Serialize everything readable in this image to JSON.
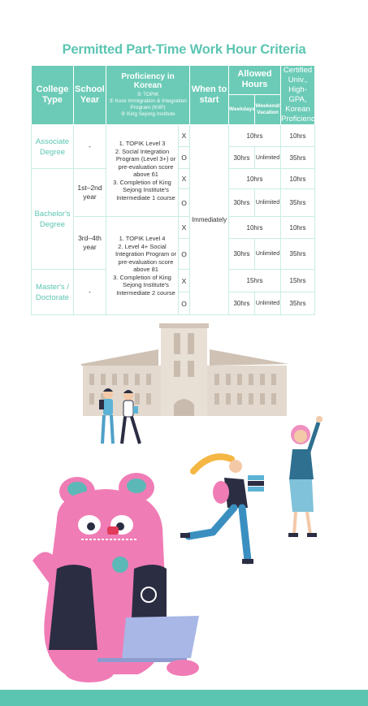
{
  "title": "Permitted Part-Time Work Hour Criteria",
  "headers": {
    "college_type": "College Type",
    "school_year": "School Year",
    "proficiency": "Proficiency in Korean",
    "proficiency_list": [
      "① TOPIK",
      "② Kore Immigration & Integration Program (KIIP)",
      "③ King Sejong Institute"
    ],
    "when_to_start": "When to start",
    "allowed_hours": "Allowed Hours",
    "weekdays": "Weekdays",
    "weekend": "Weekend/ Vacation",
    "certified": "Certified Univ., High-GPA, Korean Proficiency"
  },
  "when_value": "Immediately",
  "rows": [
    {
      "college": "Associate Degree",
      "year": "-",
      "xo": "X",
      "weekday": "10hrs",
      "weekend": "",
      "certified": "10hrs"
    },
    {
      "college": "",
      "year": "",
      "xo": "O",
      "weekday": "30hrs",
      "weekend": "Unlimited",
      "certified": "35hrs"
    },
    {
      "college": "Bachelor's Degree",
      "year": "1st–2nd year",
      "xo": "X",
      "weekday": "10hrs",
      "weekend": "",
      "certified": "10hrs"
    },
    {
      "college": "",
      "year": "",
      "xo": "O",
      "weekday": "30hrs",
      "weekend": "Unlimited",
      "certified": "35hrs"
    },
    {
      "college": "",
      "year": "3rd–4th year",
      "xo": "X",
      "weekday": "10hrs",
      "weekend": "",
      "certified": "10hrs"
    },
    {
      "college": "",
      "year": "",
      "xo": "O",
      "weekday": "30hrs",
      "weekend": "Unlimited",
      "certified": "35hrs"
    },
    {
      "college": "Master's / Doctorate",
      "year": "-",
      "xo": "X",
      "weekday": "15hrs",
      "weekend": "",
      "certified": "15hrs"
    },
    {
      "college": "",
      "year": "",
      "xo": "O",
      "weekday": "30hrs",
      "weekend": "Unlimited",
      "certified": "35hrs"
    }
  ],
  "criteria_group1": [
    "1. TOPIK Level 3",
    "2. Social Integration Program (Level 3+) or pre-evaluation score above 61",
    "3. Completion of King Sejong Institute's Intermediate 1 course"
  ],
  "criteria_group2": [
    "1. TOPIK Level 4",
    "2. Level 4+ Social Integration Program or pre-evaluation score above 81",
    "3. Completion of King Sejong Institute's Intermediate 2 course"
  ],
  "colors": {
    "accent": "#5cc5b2",
    "header_bg": "#6ccbb7",
    "mascot": "#f07cb6",
    "building": "#d9cfc4"
  }
}
